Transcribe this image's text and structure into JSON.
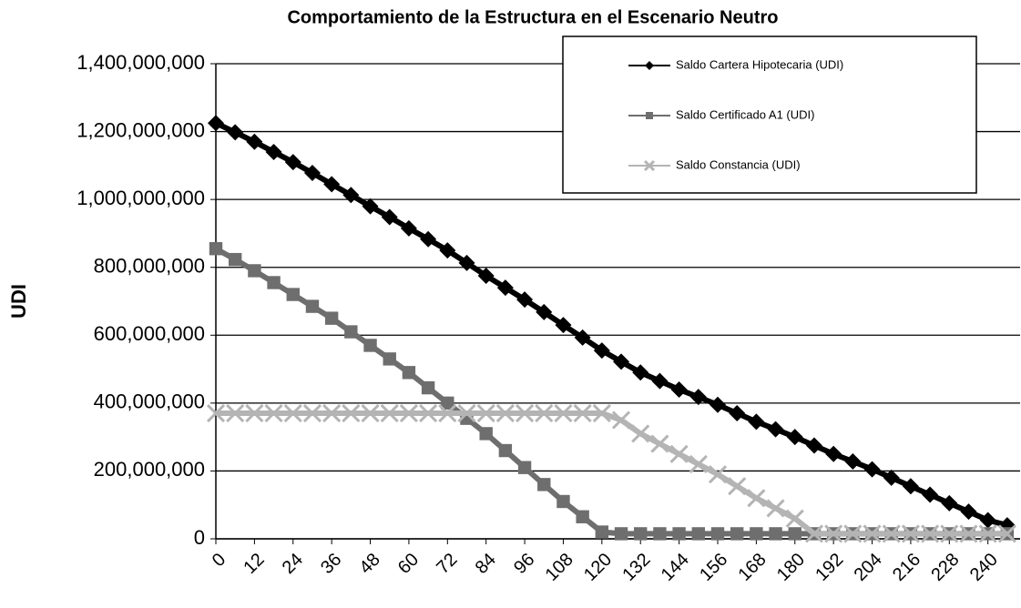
{
  "chart_data": {
    "type": "line",
    "title": "Comportamiento de la Estructura  en el Escenario Neutro",
    "y_label": "UDI",
    "x": [
      0,
      6,
      12,
      18,
      24,
      30,
      36,
      42,
      48,
      54,
      60,
      66,
      72,
      78,
      84,
      90,
      96,
      102,
      108,
      114,
      120,
      126,
      132,
      138,
      144,
      150,
      156,
      162,
      168,
      174,
      180,
      186,
      192,
      198,
      204,
      210,
      216,
      222,
      228,
      234,
      240,
      246
    ],
    "series": [
      {
        "name": "Saldo Cartera Hipotecaria (UDI)",
        "color": "#000000",
        "marker": "diamond",
        "values": [
          1225000000,
          1198000000,
          1170000000,
          1140000000,
          1110000000,
          1078000000,
          1045000000,
          1013000000,
          980000000,
          948000000,
          915000000,
          883000000,
          850000000,
          813000000,
          775000000,
          740000000,
          705000000,
          668000000,
          630000000,
          593000000,
          555000000,
          522000000,
          490000000,
          465000000,
          440000000,
          418000000,
          395000000,
          370000000,
          345000000,
          323000000,
          300000000,
          275000000,
          250000000,
          228000000,
          205000000,
          180000000,
          155000000,
          130000000,
          105000000,
          80000000,
          55000000,
          40000000
        ]
      },
      {
        "name": "Saldo Certificado A1 (UDI)",
        "color": "#6e6e6e",
        "marker": "square",
        "values": [
          855000000,
          823000000,
          790000000,
          755000000,
          720000000,
          685000000,
          650000000,
          610000000,
          570000000,
          530000000,
          490000000,
          445000000,
          400000000,
          355000000,
          310000000,
          260000000,
          210000000,
          160000000,
          110000000,
          65000000,
          20000000,
          15000000,
          15000000,
          15000000,
          15000000,
          15000000,
          15000000,
          15000000,
          15000000,
          15000000,
          15000000,
          15000000,
          15000000,
          15000000,
          15000000,
          15000000,
          15000000,
          15000000,
          15000000,
          15000000,
          15000000,
          15000000
        ]
      },
      {
        "name": "Saldo Constancia (UDI)",
        "color": "#b4b4b4",
        "marker": "x",
        "values": [
          370000000,
          370000000,
          370000000,
          370000000,
          370000000,
          370000000,
          370000000,
          370000000,
          370000000,
          370000000,
          370000000,
          370000000,
          370000000,
          370000000,
          370000000,
          370000000,
          370000000,
          370000000,
          370000000,
          370000000,
          370000000,
          350000000,
          310000000,
          280000000,
          250000000,
          220000000,
          190000000,
          155000000,
          120000000,
          90000000,
          60000000,
          15000000,
          15000000,
          15000000,
          15000000,
          15000000,
          15000000,
          15000000,
          15000000,
          15000000,
          15000000,
          15000000
        ]
      }
    ],
    "xlim": [
      0,
      250
    ],
    "xticks": [
      0,
      12,
      24,
      36,
      48,
      60,
      72,
      84,
      96,
      108,
      120,
      132,
      144,
      156,
      168,
      180,
      192,
      204,
      216,
      228,
      240
    ],
    "ylim": [
      0,
      1400000000
    ],
    "yticks": [
      0,
      {
        "value": 200000000,
        "label": "200,000,000"
      },
      {
        "value": 400000000,
        "label": "400,000,000"
      },
      {
        "value": 600000000,
        "label": "600,000,000"
      },
      {
        "value": 800000000,
        "label": "800,000,000"
      },
      {
        "value": 1000000000,
        "label": "1,000,000,000"
      },
      {
        "value": 1200000000,
        "label": "1,200,000,000"
      },
      {
        "value": 1400000000,
        "label": "1,400,000,000"
      }
    ],
    "grid": true,
    "legend": "upper right"
  }
}
